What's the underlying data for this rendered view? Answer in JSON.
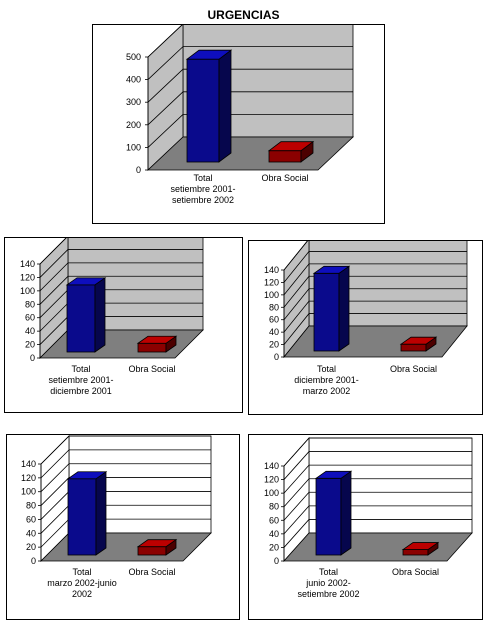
{
  "page": {
    "title": "URGENCIAS"
  },
  "colors": {
    "total_bar": "#0a0a8c",
    "obra_bar": "#8b0000",
    "wall_gray": "#c0c0c0",
    "wall_white": "#ffffff",
    "floor": "#7f7f7f"
  },
  "chart_data": [
    {
      "type": "bar",
      "title": "URGENCIAS",
      "categories": [
        "Total setiembre 2001- setiembre 2002",
        "Obra Social"
      ],
      "category_label_lines": [
        [
          "Total",
          "setiembre 2001-",
          "setiembre 2002"
        ],
        [
          "Obra Social"
        ]
      ],
      "values": [
        455,
        50
      ],
      "yticks": [
        "0",
        "100",
        "200",
        "300",
        "400",
        "500"
      ],
      "ylim": [
        0,
        500
      ],
      "wall_style": "gray",
      "grid": true
    },
    {
      "type": "bar",
      "categories": [
        "Total setiembre 2001- diciembre 2001",
        "Obra Social"
      ],
      "category_label_lines": [
        [
          "Total",
          "setiembre 2001-",
          "diciembre 2001"
        ],
        [
          "Obra Social"
        ]
      ],
      "values": [
        100,
        13
      ],
      "yticks": [
        "0",
        "20",
        "40",
        "60",
        "80",
        "100",
        "120",
        "140"
      ],
      "ylim": [
        0,
        140
      ],
      "wall_style": "gray",
      "grid": true
    },
    {
      "type": "bar",
      "categories": [
        "Total diciembre 2001- marzo 2002",
        "Obra Social"
      ],
      "category_label_lines": [
        [
          "Total",
          "diciembre 2001-",
          "marzo 2002"
        ],
        [
          "Obra Social"
        ]
      ],
      "values": [
        125,
        11
      ],
      "yticks": [
        "0",
        "20",
        "40",
        "60",
        "80",
        "100",
        "120",
        "140"
      ],
      "ylim": [
        0,
        140
      ],
      "wall_style": "gray",
      "grid": true
    },
    {
      "type": "bar",
      "categories": [
        "Total marzo 2002-junio 2002",
        "Obra Social"
      ],
      "category_label_lines": [
        [
          "Total",
          "marzo 2002-junio",
          "2002"
        ],
        [
          "Obra Social"
        ]
      ],
      "values": [
        110,
        12
      ],
      "yticks": [
        "0",
        "20",
        "40",
        "60",
        "80",
        "100",
        "120",
        "140"
      ],
      "ylim": [
        0,
        140
      ],
      "wall_style": "white",
      "grid": true
    },
    {
      "type": "bar",
      "categories": [
        "Total junio 2002- setiembre 2002",
        "Obra Social"
      ],
      "category_label_lines": [
        [
          "Total",
          "junio 2002-",
          "setiembre 2002"
        ],
        [
          "Obra Social"
        ]
      ],
      "values": [
        113,
        8
      ],
      "yticks": [
        "0",
        "20",
        "40",
        "60",
        "80",
        "100",
        "120",
        "140"
      ],
      "ylim": [
        0,
        140
      ],
      "wall_style": "white",
      "grid": true
    }
  ]
}
